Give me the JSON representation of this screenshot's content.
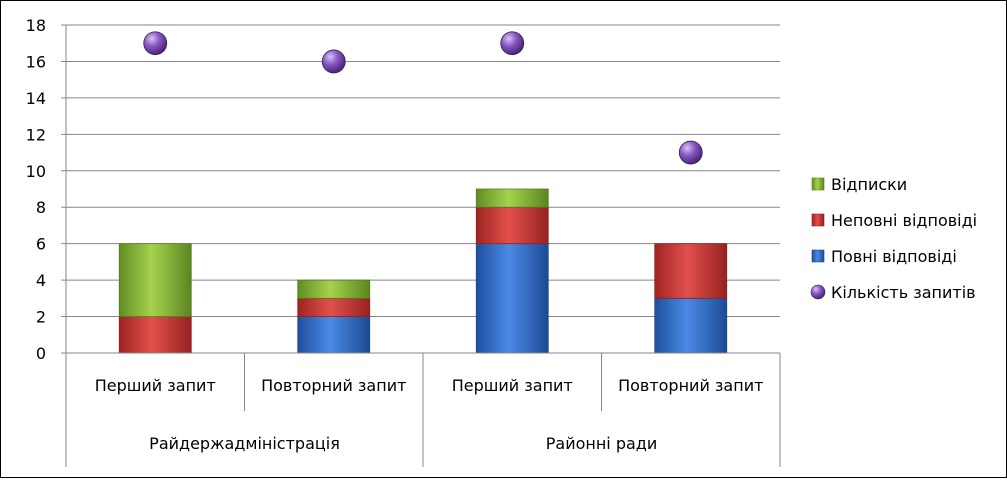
{
  "chart_data": {
    "type": "bar",
    "stacked": true,
    "title": "",
    "xlabel": "",
    "ylabel": "",
    "ylim": [
      0,
      18
    ],
    "yticks": [
      0,
      2,
      4,
      6,
      8,
      10,
      12,
      14,
      16,
      18
    ],
    "grid": true,
    "legend_position": "right",
    "groups": [
      {
        "label": "Райдержадміністрація",
        "categories": [
          "Перший запит",
          "Повторний запит"
        ]
      },
      {
        "label": "Районні ради",
        "categories": [
          "Перший запит",
          "Повторний запит"
        ]
      }
    ],
    "categories": [
      "Перший запит",
      "Повторний запит",
      "Перший запит",
      "Повторний запит"
    ],
    "series": [
      {
        "name": "Повні відповіді",
        "kind": "bar",
        "color": "#2e6fcf",
        "values": [
          0,
          2,
          6,
          3
        ]
      },
      {
        "name": "Неповні відповіді",
        "kind": "bar",
        "color": "#d33a37",
        "values": [
          2,
          1,
          2,
          3
        ]
      },
      {
        "name": "Відписки",
        "kind": "bar",
        "color": "#8cbf3a",
        "values": [
          4,
          1,
          1,
          0
        ]
      },
      {
        "name": "Кількість запитів",
        "kind": "marker",
        "color": "#7a4bb0",
        "values": [
          17,
          16,
          17,
          11
        ]
      }
    ],
    "legend_order": [
      "Відписки",
      "Неповні відповіді",
      "Повні відповіді",
      "Кількість запитів"
    ]
  }
}
